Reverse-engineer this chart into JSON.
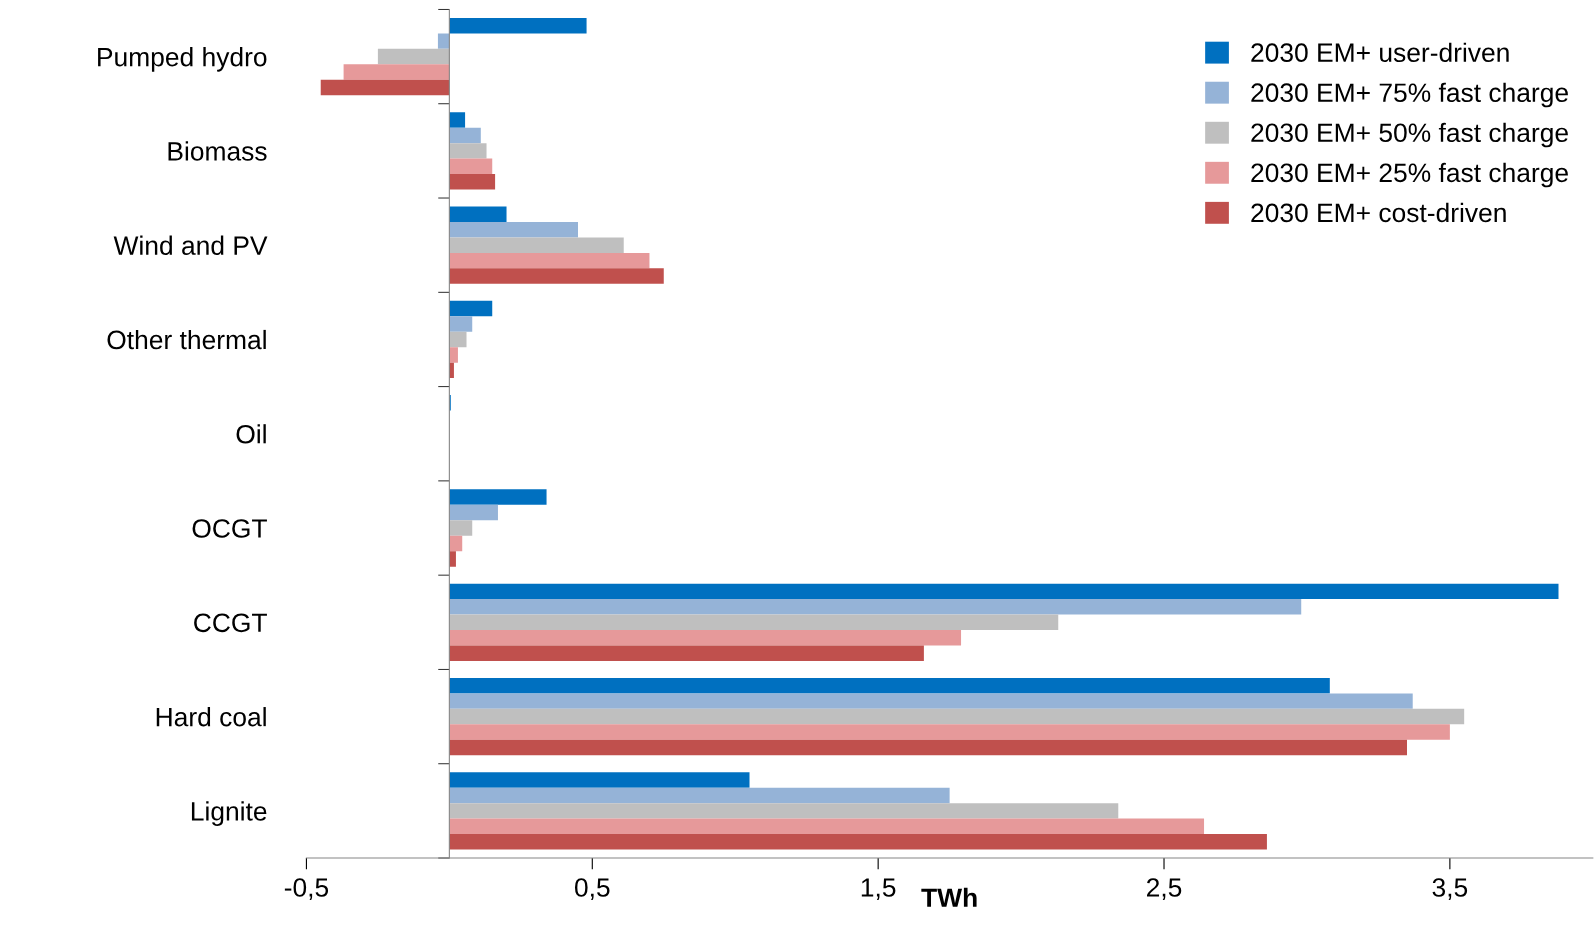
{
  "chart_data": {
    "type": "bar",
    "orientation": "horizontal",
    "xlabel": "TWh",
    "categories": [
      "Pumped hydro",
      "Biomass",
      "Wind and PV",
      "Other thermal",
      "Oil",
      "OCGT",
      "CCGT",
      "Hard coal",
      "Lignite"
    ],
    "series": [
      {
        "name": "2030 EM+ user-driven",
        "color": "#0070c0",
        "values": [
          0.48,
          0.055,
          0.2,
          0.15,
          0.005,
          0.34,
          3.88,
          3.08,
          1.05
        ]
      },
      {
        "name": "2030 EM+ 75% fast charge",
        "color": "#95b3d7",
        "values": [
          -0.04,
          0.11,
          0.45,
          0.08,
          null,
          0.17,
          2.98,
          3.37,
          1.75
        ]
      },
      {
        "name": "2030 EM+ 50% fast charge",
        "color": "#bfbfbf",
        "values": [
          -0.25,
          0.13,
          0.61,
          0.06,
          null,
          0.08,
          2.13,
          3.55,
          2.34
        ]
      },
      {
        "name": "2030 EM+ 25% fast charge",
        "color": "#e6999a",
        "values": [
          -0.37,
          0.15,
          0.7,
          0.03,
          null,
          0.045,
          1.79,
          3.5,
          2.64
        ]
      },
      {
        "name": "2030 EM+ cost-driven",
        "color": "#c0504d",
        "values": [
          -0.45,
          0.16,
          0.75,
          0.016,
          null,
          0.023,
          1.66,
          3.35,
          2.86
        ]
      }
    ],
    "xlim": [
      -0.5,
      4.0
    ],
    "xticks": [
      {
        "value": -0.5,
        "label": "-0,5"
      },
      {
        "value": 0.5,
        "label": "0,5"
      },
      {
        "value": 1.5,
        "label": "1,5"
      },
      {
        "value": 2.5,
        "label": "2,5"
      },
      {
        "value": 3.5,
        "label": "3,5"
      }
    ],
    "legend": "top right",
    "grid": false
  }
}
